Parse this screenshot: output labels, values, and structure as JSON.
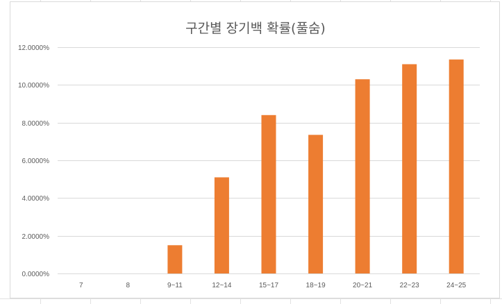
{
  "chart_data": {
    "type": "bar",
    "title": "구간별 장기백 확률(풀숨)",
    "xlabel": "",
    "ylabel": "",
    "categories": [
      "7",
      "8",
      "9~11",
      "12~14",
      "15~17",
      "18~19",
      "20~21",
      "22~23",
      "24~25"
    ],
    "series": [
      {
        "values": [
          0,
          0,
          1.5,
          5.1,
          8.4,
          7.35,
          10.3,
          11.1,
          11.35
        ]
      }
    ],
    "ylim": [
      0,
      12
    ],
    "yticks": [
      0,
      2,
      4,
      6,
      8,
      10,
      12
    ],
    "ytick_labels": [
      "0.0000%",
      "2.0000%",
      "4.0000%",
      "6.0000%",
      "8.0000%",
      "10.0000%",
      "12.0000%"
    ],
    "grid": true,
    "legend": "none",
    "bar_color": "#ED7D31",
    "grid_color": "#D9D9D9"
  }
}
